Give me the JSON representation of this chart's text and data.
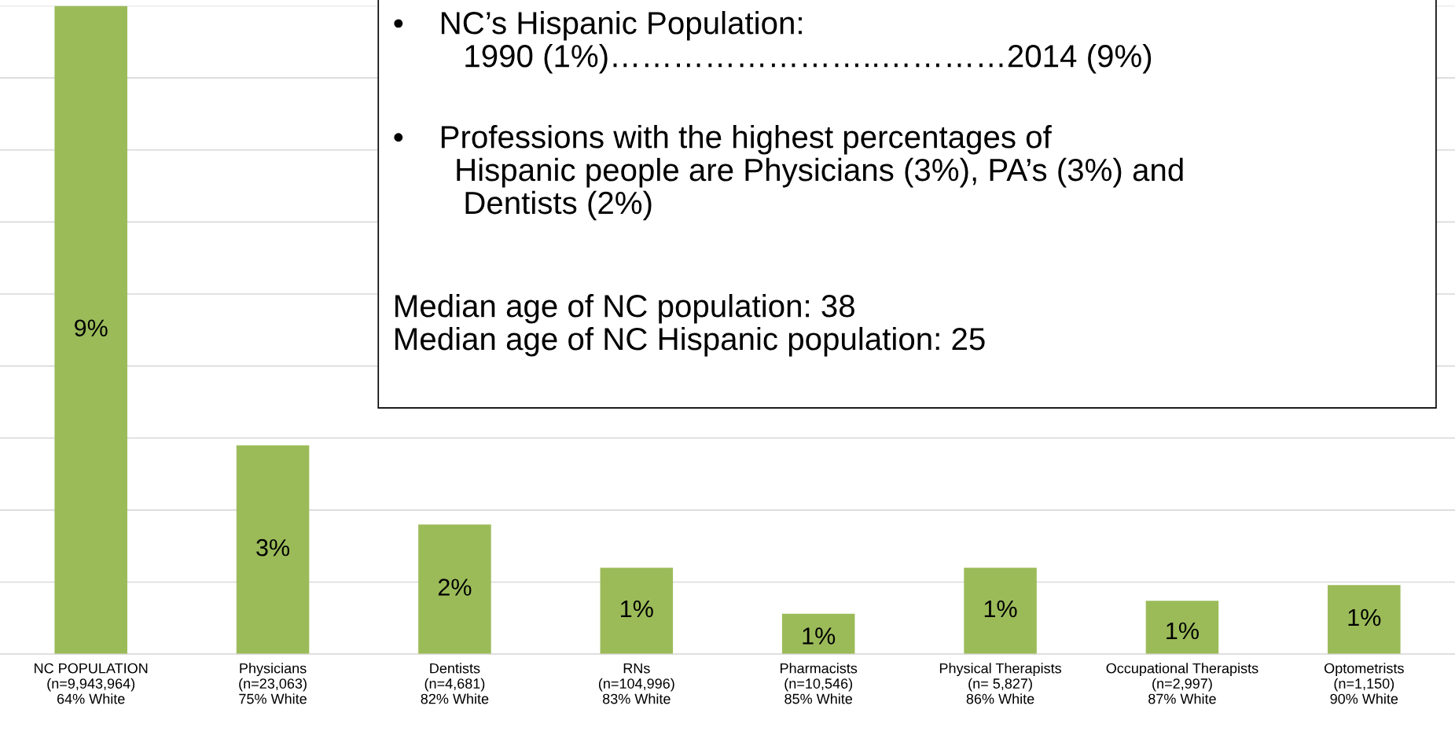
{
  "chart_data": {
    "type": "bar",
    "ylim": [
      0,
      9
    ],
    "yticks": [
      {
        "value": 0,
        "label": null
      },
      {
        "value": 1,
        "label": null
      },
      {
        "value": 2,
        "label": null
      },
      {
        "value": 3,
        "label": null
      },
      {
        "value": 4,
        "label": null
      },
      {
        "value": 5,
        "label": null
      },
      {
        "value": 6,
        "label": null
      },
      {
        "value": 7,
        "label": null
      },
      {
        "value": 8,
        "label": null
      },
      {
        "value": 9,
        "label": null
      }
    ],
    "categories": [
      "NC POPULATION\n(n=9,943,964)\n64% White",
      "Physicians\n(n=23,063)\n75% White",
      "Dentists\n(n=4,681)\n82% White",
      "RNs\n(n=104,996)\n83% White",
      "Pharmacists\n(n=10,546)\n85% White",
      "Physical Therapists\n(n= 5,827)\n86% White",
      "Occupational Therapists\n(n=2,997)\n87% White",
      "Optometrists\n(n=1,150)\n90% White"
    ],
    "values": [
      9,
      2.9,
      1.8,
      1.2,
      0.56,
      1.2,
      0.74,
      0.96
    ],
    "value_labels": [
      "9%",
      "3%",
      "2%",
      "1%",
      "1%",
      "1%",
      "1%",
      "1%"
    ],
    "color": "#9bbb59",
    "grid": "y",
    "annotations": [
      "•    NC’s Hispanic Population:\n        1990 (1%)……………………..…………2014 (9%)",
      "•    Professions with the highest percentages of\n       Hispanic people are Physicians (3%), PA’s (3%) and\n        Dentists (2%)",
      "Median age of NC population: 38\nMedian age of NC Hispanic population: 25"
    ]
  }
}
